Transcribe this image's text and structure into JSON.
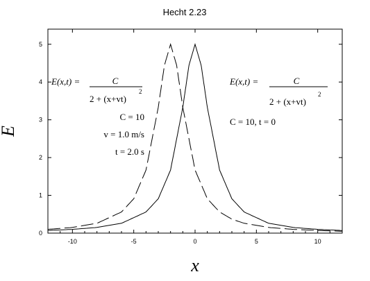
{
  "chart_data": {
    "type": "line",
    "title": "Hecht 2.23",
    "xlabel": "x",
    "ylabel": "E",
    "xlim": [
      -12,
      12
    ],
    "ylim": [
      0,
      5.4
    ],
    "x_ticks": [
      -10,
      -5,
      0,
      5,
      10
    ],
    "x_tick_labels": [
      "-10",
      "-5",
      "0",
      "5",
      "10"
    ],
    "y_ticks": [
      0,
      1,
      2,
      3,
      4,
      5
    ],
    "y_tick_labels": [
      "0",
      "1",
      "2",
      "3",
      "4",
      "5"
    ],
    "grid": false,
    "series": [
      {
        "line_style": "dashed",
        "x": [
          -12,
          -10,
          -8,
          -6,
          -5,
          -4,
          -3,
          -2.5,
          -2,
          -1.5,
          -1,
          0,
          1,
          2,
          3,
          4,
          6,
          8,
          10,
          12
        ],
        "y": [
          0.1,
          0.15,
          0.26,
          0.56,
          0.91,
          1.67,
          3.33,
          4.44,
          5.0,
          4.44,
          3.33,
          1.67,
          0.91,
          0.56,
          0.37,
          0.26,
          0.15,
          0.1,
          0.07,
          0.05
        ]
      },
      {
        "line_style": "solid",
        "x": [
          -12,
          -10,
          -8,
          -6,
          -4,
          -3,
          -2,
          -1,
          -0.5,
          0,
          0.5,
          1,
          2,
          3,
          4,
          6,
          8,
          10,
          12
        ],
        "y": [
          0.07,
          0.1,
          0.15,
          0.26,
          0.56,
          0.91,
          1.67,
          3.33,
          4.44,
          5.0,
          4.44,
          3.33,
          1.67,
          0.91,
          0.56,
          0.26,
          0.15,
          0.1,
          0.07
        ]
      }
    ],
    "annotations": {
      "left": {
        "eq_lhs": "E(x,t) =",
        "numerator": "C",
        "denominator": "2 + (x+vt)",
        "exponent": "2",
        "line1": "C = 10",
        "line2": "v = 1.0 m/s",
        "line3": "t = 2.0 s"
      },
      "right": {
        "eq_lhs": "E(x,t) =",
        "numerator": "C",
        "denominator": "2 + (x+vt)",
        "exponent": "2",
        "line1": "C = 10, t = 0"
      }
    }
  }
}
